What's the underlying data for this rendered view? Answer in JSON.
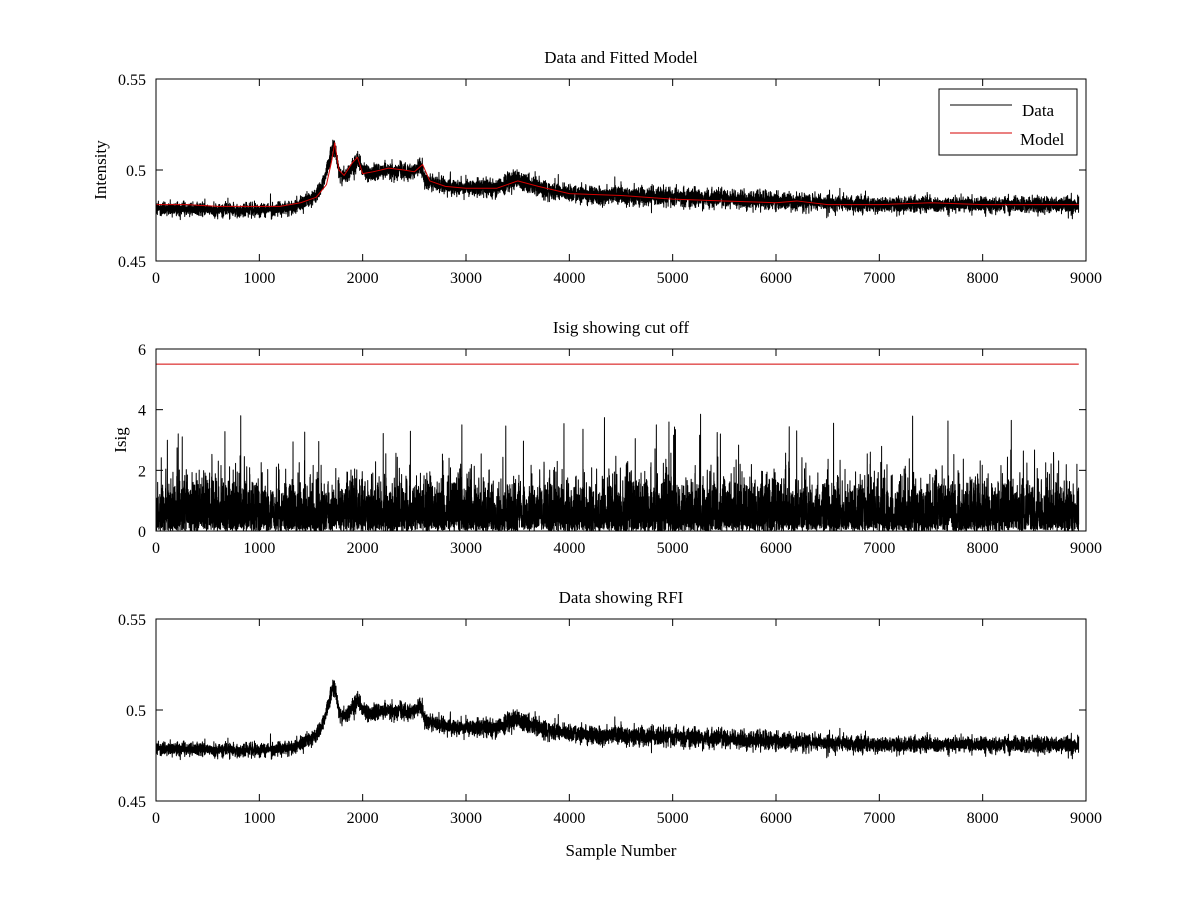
{
  "figure": {
    "background": "#ffffff"
  },
  "chart_data": [
    {
      "type": "line",
      "title": "Data and Fitted Model",
      "xlabel": "",
      "ylabel": "Intensity",
      "xlim": [
        0,
        9000
      ],
      "ylim": [
        0.45,
        0.55
      ],
      "xticks": [
        0,
        1000,
        2000,
        3000,
        4000,
        5000,
        6000,
        7000,
        8000,
        9000
      ],
      "yticks": [
        0.45,
        0.5,
        0.55
      ],
      "xtick_labels": [
        "0",
        "1000",
        "2000",
        "3000",
        "4000",
        "5000",
        "6000",
        "7000",
        "8000",
        "9000"
      ],
      "ytick_labels": [
        "0.45",
        "0.5",
        "0.55"
      ],
      "grid": false,
      "legend": {
        "position": "top-right",
        "entries": [
          "Data",
          "Model"
        ]
      },
      "series": [
        {
          "name": "Data",
          "color": "#000000",
          "render": "noisy",
          "n_points": 8930,
          "baseline": {
            "x": [
              0,
              500,
              1000,
              1300,
              1500,
              1600,
              1680,
              1720,
              1780,
              1850,
              1950,
              2050,
              2250,
              2450,
              2560,
              2620,
              2800,
              3100,
              3300,
              3480,
              3700,
              4000,
              5000,
              6000,
              7000,
              8000,
              8930
            ],
            "y": [
              0.479,
              0.478,
              0.478,
              0.479,
              0.484,
              0.49,
              0.505,
              0.515,
              0.498,
              0.497,
              0.505,
              0.498,
              0.5,
              0.499,
              0.502,
              0.494,
              0.491,
              0.49,
              0.49,
              0.495,
              0.49,
              0.487,
              0.485,
              0.483,
              0.481,
              0.481,
              0.481
            ]
          },
          "noise_halfwidth": {
            "x": [
              0,
              1000,
              2000,
              3000,
              3500,
              4000,
              5000,
              6000,
              7000,
              8000,
              8930
            ],
            "y": [
              0.004,
              0.0045,
              0.0055,
              0.005,
              0.0065,
              0.0055,
              0.006,
              0.0055,
              0.005,
              0.005,
              0.005
            ]
          },
          "spike_max": 0.0065
        },
        {
          "name": "Model",
          "color": "#d40000",
          "render": "smooth",
          "x": [
            0,
            300,
            600,
            900,
            1200,
            1400,
            1550,
            1650,
            1700,
            1730,
            1770,
            1820,
            1900,
            1950,
            2000,
            2100,
            2250,
            2400,
            2500,
            2580,
            2650,
            2800,
            3000,
            3300,
            3500,
            3700,
            4000,
            4500,
            5000,
            5500,
            6000,
            6200,
            6500,
            7000,
            7500,
            8000,
            8500,
            8930
          ],
          "y": [
            0.481,
            0.481,
            0.48,
            0.48,
            0.48,
            0.482,
            0.485,
            0.492,
            0.505,
            0.515,
            0.5,
            0.497,
            0.504,
            0.507,
            0.498,
            0.499,
            0.501,
            0.5,
            0.499,
            0.503,
            0.494,
            0.491,
            0.49,
            0.49,
            0.494,
            0.491,
            0.487,
            0.486,
            0.484,
            0.483,
            0.482,
            0.483,
            0.481,
            0.481,
            0.482,
            0.481,
            0.481,
            0.481
          ]
        }
      ]
    },
    {
      "type": "line",
      "title": "Isig showing cut off",
      "xlabel": "",
      "ylabel": "Isig",
      "xlim": [
        0,
        9000
      ],
      "ylim": [
        0,
        6
      ],
      "xticks": [
        0,
        1000,
        2000,
        3000,
        4000,
        5000,
        6000,
        7000,
        8000,
        9000
      ],
      "yticks": [
        0,
        2,
        4,
        6
      ],
      "xtick_labels": [
        "0",
        "1000",
        "2000",
        "3000",
        "4000",
        "5000",
        "6000",
        "7000",
        "8000",
        "9000"
      ],
      "ytick_labels": [
        "0",
        "2",
        "4",
        "6"
      ],
      "grid": false,
      "series": [
        {
          "color": "#000000",
          "render": "abs-noise",
          "n_points": 8930,
          "scale": 0.8,
          "spike_max": 3.8,
          "peaks": [
            [
              820,
              3.8
            ],
            [
              2960,
              3.5
            ],
            [
              5270,
              3.85
            ],
            [
              6200,
              3.3
            ]
          ]
        },
        {
          "color": "#d40000",
          "render": "line",
          "x": [
            0,
            8930
          ],
          "y": [
            5.5,
            5.5
          ]
        }
      ]
    },
    {
      "type": "line",
      "title": "Data showing RFI",
      "xlabel": "Sample Number",
      "ylabel": "",
      "xlim": [
        0,
        9000
      ],
      "ylim": [
        0.45,
        0.55
      ],
      "xticks": [
        0,
        1000,
        2000,
        3000,
        4000,
        5000,
        6000,
        7000,
        8000,
        9000
      ],
      "yticks": [
        0.45,
        0.5,
        0.55
      ],
      "xtick_labels": [
        "0",
        "1000",
        "2000",
        "3000",
        "4000",
        "5000",
        "6000",
        "7000",
        "8000",
        "9000"
      ],
      "ytick_labels": [
        "0.45",
        "0.5",
        "0.55"
      ],
      "grid": false,
      "series": [
        {
          "color": "#000000",
          "render": "noisy",
          "n_points": 8930,
          "same_as": "Data"
        }
      ]
    }
  ]
}
